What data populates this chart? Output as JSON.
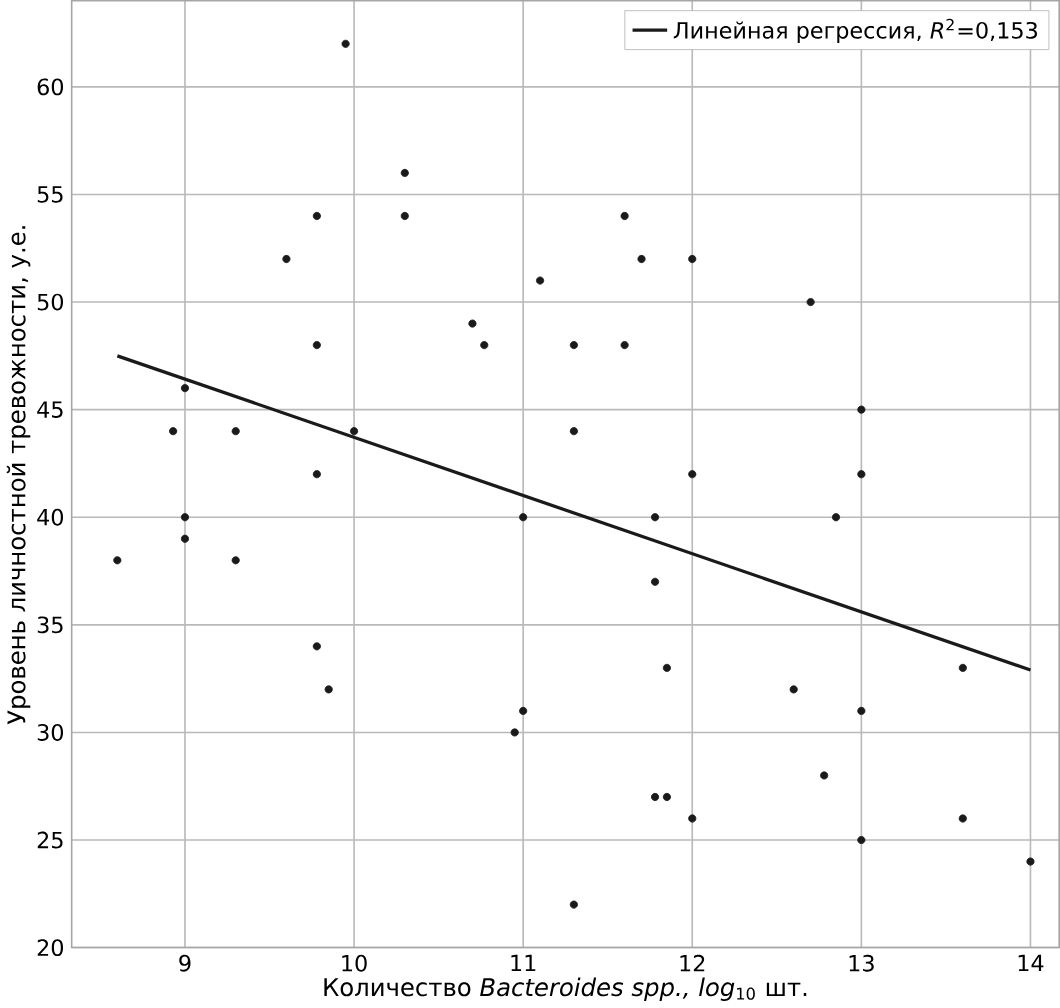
{
  "chart_data": {
    "type": "scatter",
    "xlabel": "Количество *Bacteroides spp., log*$_{10}$ шт.",
    "ylabel": "Уровень личностной тревожности, у.е.",
    "xlim": [
      8.33,
      14.17
    ],
    "ylim": [
      20,
      64
    ],
    "xticks": [
      9,
      10,
      11,
      12,
      13,
      14
    ],
    "yticks": [
      20,
      25,
      30,
      35,
      40,
      45,
      50,
      55,
      60
    ],
    "grid": true,
    "legend": "top right",
    "marker": "circle",
    "series": [
      {
        "type": "scatter",
        "color": "#1a1a1a",
        "x": [
          8.6,
          8.93,
          9,
          9,
          9,
          9.3,
          9.3,
          9.6,
          9.78,
          9.78,
          9.78,
          9.78,
          9.85,
          9.95,
          10,
          10.3,
          10.3,
          10.7,
          10.77,
          10.95,
          11,
          11,
          11.1,
          11.3,
          11.3,
          11.3,
          11.6,
          11.6,
          11.7,
          11.78,
          11.78,
          11.78,
          11.85,
          11.85,
          12,
          12,
          12,
          12.6,
          12.7,
          12.78,
          12.85,
          13,
          13,
          13,
          13,
          13.6,
          13.6,
          14
        ],
        "values": [
          38,
          44,
          46,
          40,
          39,
          44,
          38,
          52,
          54,
          48,
          42,
          34,
          32,
          62,
          44,
          56,
          54,
          49,
          48,
          30,
          40,
          31,
          51,
          48,
          44,
          22,
          54,
          48,
          52,
          40,
          37,
          27,
          33,
          27,
          52,
          42,
          26,
          32,
          50,
          28,
          40,
          45,
          42,
          31,
          25,
          33,
          26,
          24
        ]
      },
      {
        "type": "line",
        "name": "Линейная регрессия, *R*$^{2}$=0,153",
        "color": "#1a1a1a",
        "marker": "none",
        "line_style": "solid",
        "x": [
          8.6,
          14
        ],
        "values": [
          47.5,
          32.9
        ]
      }
    ]
  }
}
